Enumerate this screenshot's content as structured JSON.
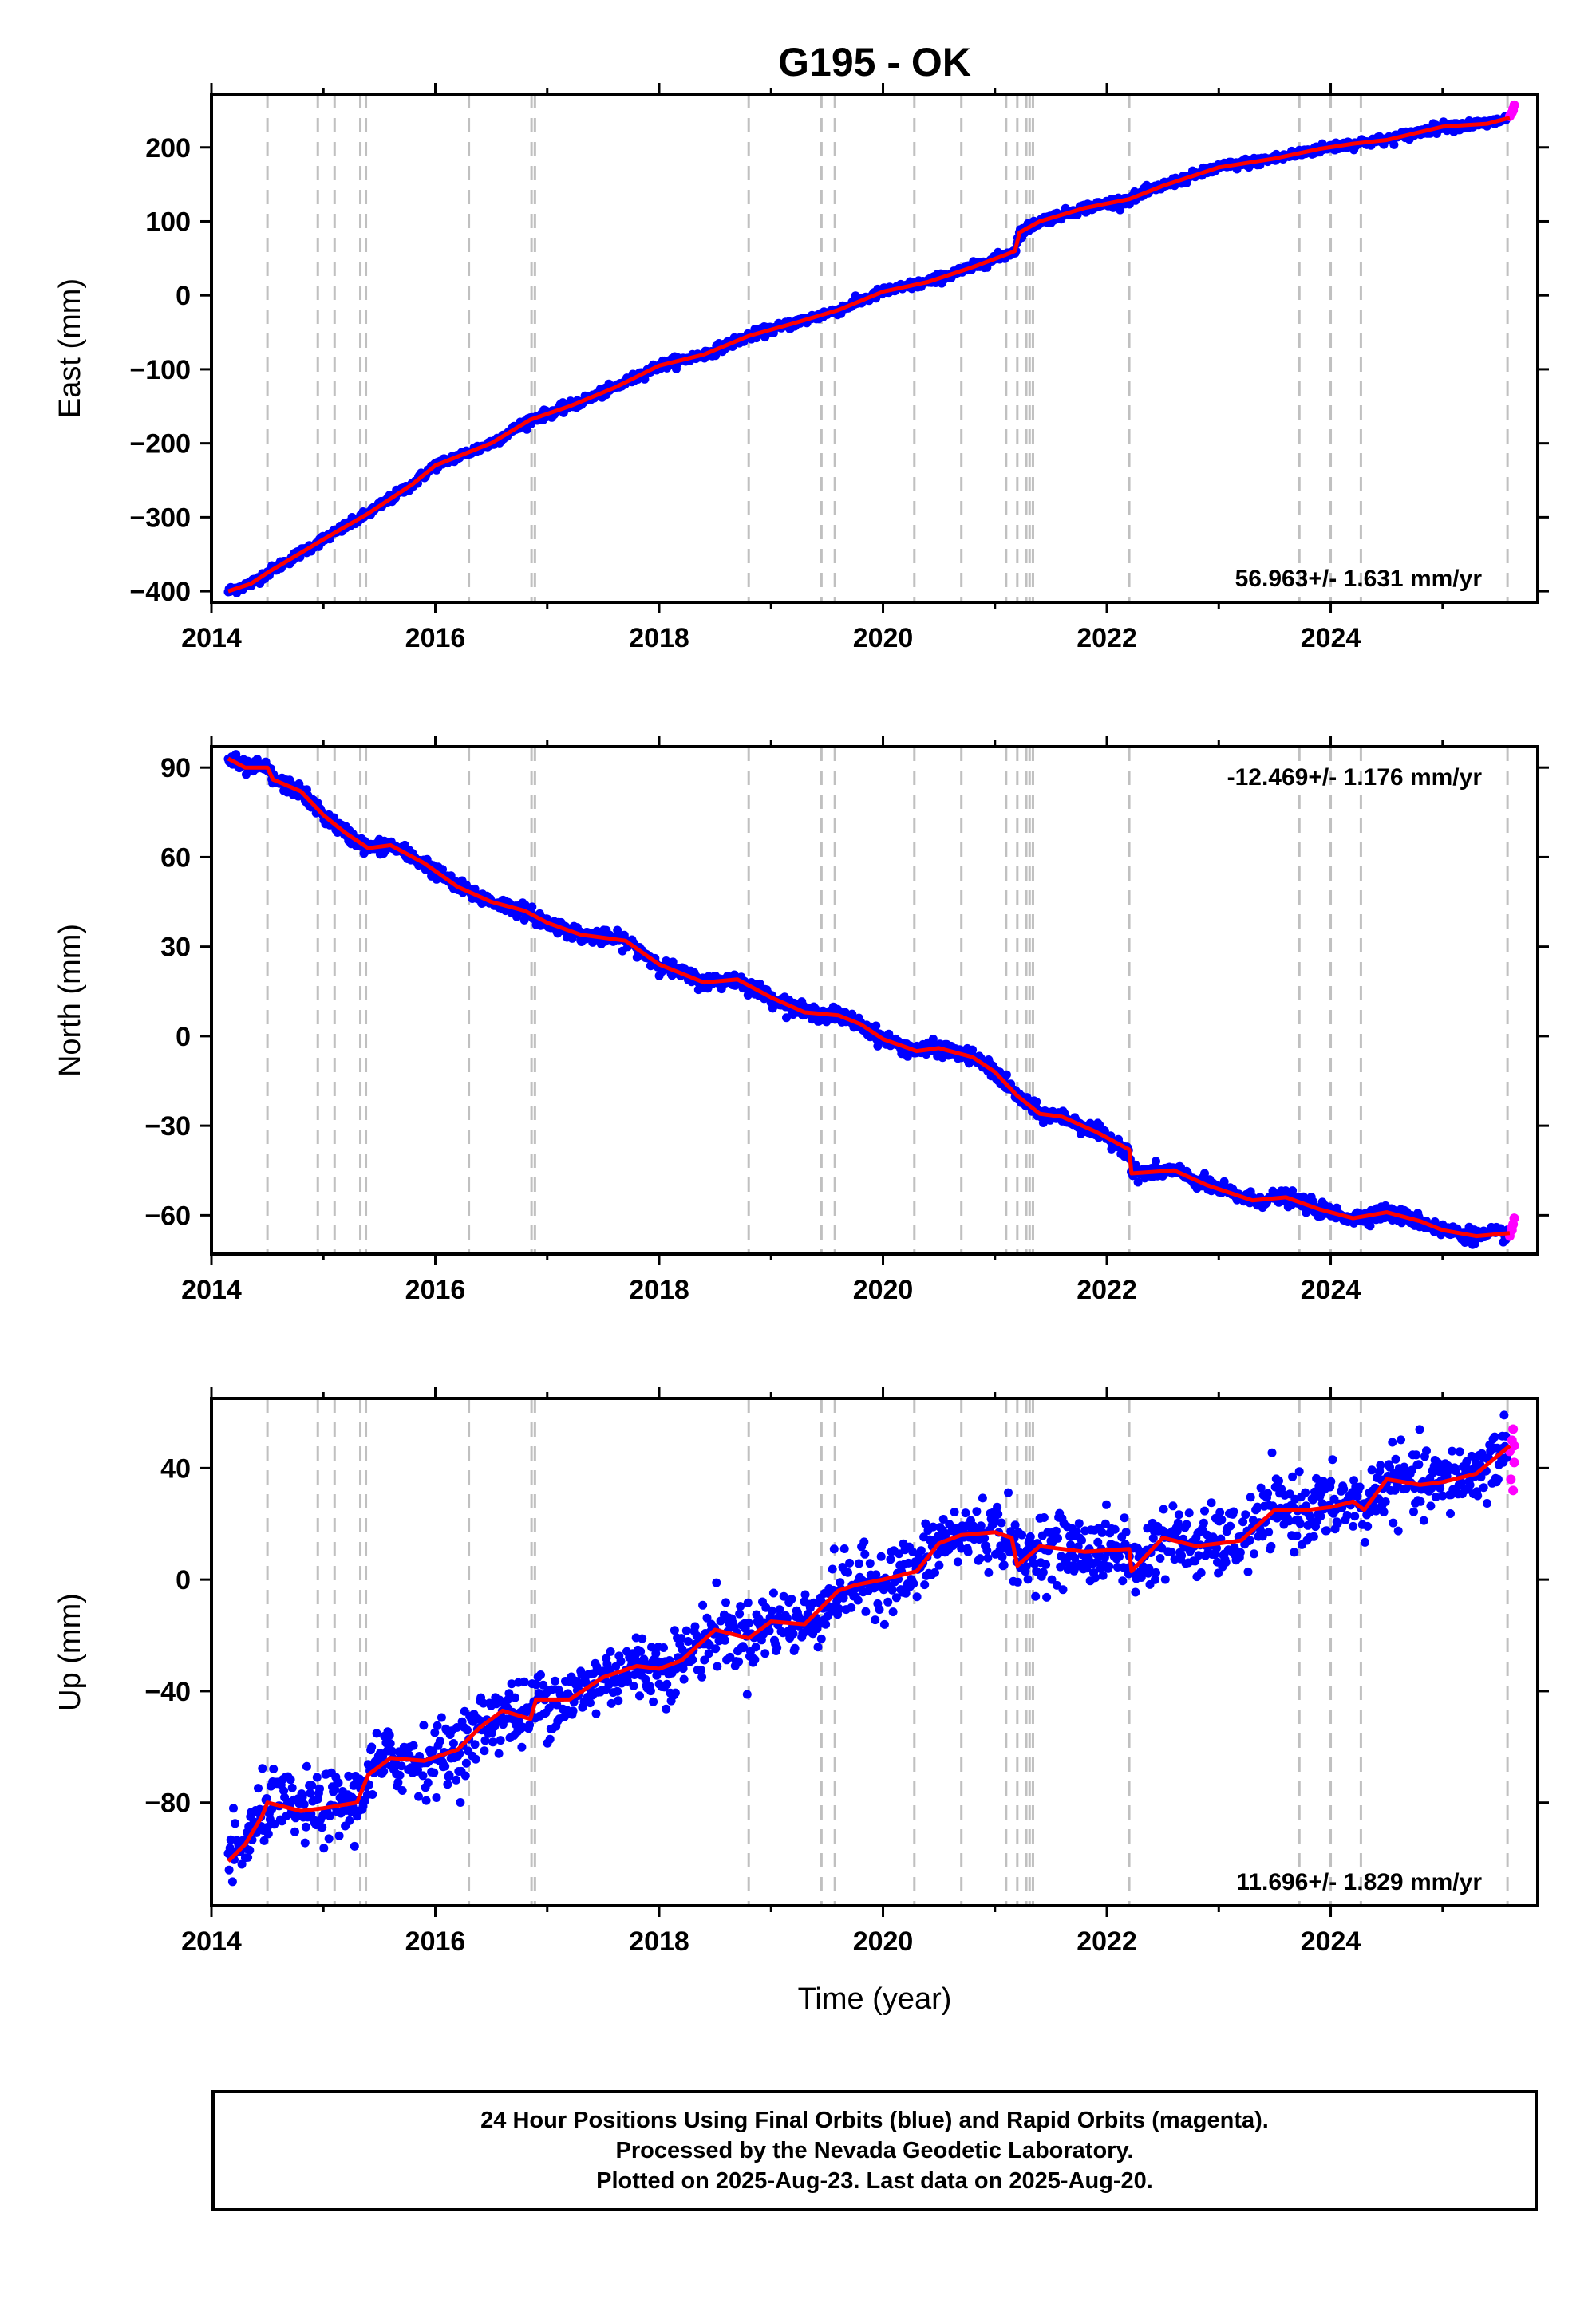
{
  "title": "G195 - OK",
  "xlabel": "Time (year)",
  "colors": {
    "final_orbits": "#0000ff",
    "rapid_orbits": "#ff00ff",
    "model": "#ff0000",
    "event_lines": "#c0c0c0",
    "frame": "#000000"
  },
  "footer": {
    "line1": "24 Hour Positions Using Final Orbits (blue) and Rapid Orbits (magenta).",
    "line2": "Processed by the Nevada Geodetic Laboratory.",
    "line3": "Plotted on 2025-Aug-23. Last data on 2025-Aug-20."
  },
  "chart_data": [
    {
      "type": "scatter",
      "component": "east",
      "ylabel": "East (mm)",
      "xlim": [
        2014.0,
        2025.85
      ],
      "ylim": [
        -415,
        272
      ],
      "xticks": [
        2014,
        2016,
        2018,
        2020,
        2022,
        2024
      ],
      "xtick_labels": [
        "2014",
        "2016",
        "2018",
        "2020",
        "2022",
        "2024"
      ],
      "yticks": [
        -400,
        -300,
        -200,
        -100,
        0,
        100,
        200
      ],
      "ytick_labels": [
        "−400",
        "−300",
        "−200",
        "−100",
        "0",
        "100",
        "200"
      ],
      "rate_label": "56.963+/- 1.631 mm/yr",
      "rate_position": "bottom-right",
      "noise_mm": 3,
      "model_points": [
        [
          2014.15,
          -400
        ],
        [
          2014.35,
          -390
        ],
        [
          2014.5,
          -375
        ],
        [
          2015.0,
          -330
        ],
        [
          2015.4,
          -295
        ],
        [
          2015.8,
          -255
        ],
        [
          2016.0,
          -230
        ],
        [
          2016.5,
          -200
        ],
        [
          2016.85,
          -168
        ],
        [
          2017.2,
          -150
        ],
        [
          2017.6,
          -125
        ],
        [
          2018.0,
          -95
        ],
        [
          2018.4,
          -80
        ],
        [
          2018.8,
          -55
        ],
        [
          2019.2,
          -38
        ],
        [
          2019.6,
          -20
        ],
        [
          2020.0,
          5
        ],
        [
          2020.4,
          18
        ],
        [
          2020.8,
          38
        ],
        [
          2021.1,
          55
        ],
        [
          2021.18,
          60
        ],
        [
          2021.22,
          85
        ],
        [
          2021.4,
          100
        ],
        [
          2021.8,
          118
        ],
        [
          2022.2,
          130
        ],
        [
          2022.5,
          148
        ],
        [
          2023.0,
          173
        ],
        [
          2023.5,
          185
        ],
        [
          2023.9,
          198
        ],
        [
          2024.2,
          205
        ],
        [
          2024.5,
          210
        ],
        [
          2025.0,
          228
        ],
        [
          2025.4,
          232
        ],
        [
          2025.6,
          240
        ]
      ],
      "rapid_points": [
        [
          2025.6,
          242
        ],
        [
          2025.62,
          247
        ],
        [
          2025.63,
          252
        ],
        [
          2025.64,
          257
        ],
        [
          2025.63,
          250
        ],
        [
          2025.61,
          245
        ]
      ],
      "data_start": 2014.15,
      "data_end": 2025.58
    },
    {
      "type": "scatter",
      "component": "north",
      "ylabel": "North (mm)",
      "xlim": [
        2014.0,
        2025.85
      ],
      "ylim": [
        -73,
        97
      ],
      "xticks": [
        2014,
        2016,
        2018,
        2020,
        2022,
        2024
      ],
      "xtick_labels": [
        "2014",
        "2016",
        "2018",
        "2020",
        "2022",
        "2024"
      ],
      "yticks": [
        -60,
        -30,
        0,
        30,
        60,
        90
      ],
      "ytick_labels": [
        "−60",
        "−30",
        "0",
        "30",
        "60",
        "90"
      ],
      "rate_label": "-12.469+/- 1.176 mm/yr",
      "rate_position": "top-right",
      "noise_mm": 1.2,
      "model_points": [
        [
          2014.15,
          93
        ],
        [
          2014.3,
          90
        ],
        [
          2014.5,
          90
        ],
        [
          2014.55,
          86
        ],
        [
          2014.8,
          82
        ],
        [
          2015.0,
          74
        ],
        [
          2015.2,
          68
        ],
        [
          2015.4,
          63
        ],
        [
          2015.6,
          64
        ],
        [
          2015.9,
          58
        ],
        [
          2016.2,
          50
        ],
        [
          2016.5,
          45
        ],
        [
          2016.8,
          42
        ],
        [
          2017.0,
          38
        ],
        [
          2017.3,
          34
        ],
        [
          2017.7,
          32
        ],
        [
          2018.0,
          24
        ],
        [
          2018.4,
          18
        ],
        [
          2018.7,
          19
        ],
        [
          2019.0,
          13
        ],
        [
          2019.3,
          8
        ],
        [
          2019.6,
          7
        ],
        [
          2019.8,
          4
        ],
        [
          2020.0,
          -1
        ],
        [
          2020.3,
          -5
        ],
        [
          2020.5,
          -4
        ],
        [
          2020.8,
          -7
        ],
        [
          2021.0,
          -12
        ],
        [
          2021.2,
          -20
        ],
        [
          2021.4,
          -26
        ],
        [
          2021.6,
          -27
        ],
        [
          2021.9,
          -32
        ],
        [
          2022.2,
          -38
        ],
        [
          2022.22,
          -46
        ],
        [
          2022.6,
          -45
        ],
        [
          2022.9,
          -50
        ],
        [
          2023.3,
          -55
        ],
        [
          2023.6,
          -54
        ],
        [
          2023.9,
          -58
        ],
        [
          2024.2,
          -61
        ],
        [
          2024.5,
          -59
        ],
        [
          2024.8,
          -62
        ],
        [
          2025.0,
          -65
        ],
        [
          2025.3,
          -67
        ],
        [
          2025.6,
          -66
        ]
      ],
      "rapid_points": [
        [
          2025.6,
          -67
        ],
        [
          2025.62,
          -65
        ],
        [
          2025.63,
          -63
        ],
        [
          2025.64,
          -61
        ],
        [
          2025.62,
          -64
        ]
      ],
      "data_start": 2014.15,
      "data_end": 2025.58
    },
    {
      "type": "scatter",
      "component": "up",
      "ylabel": "Up (mm)",
      "xlim": [
        2014.0,
        2025.85
      ],
      "ylim": [
        -117,
        65
      ],
      "xticks": [
        2014,
        2016,
        2018,
        2020,
        2022,
        2024
      ],
      "xtick_labels": [
        "2014",
        "2016",
        "2018",
        "2020",
        "2022",
        "2024"
      ],
      "yticks": [
        -80,
        -40,
        0,
        40
      ],
      "ytick_labels": [
        "−80",
        "−40",
        "0",
        "40"
      ],
      "rate_label": "11.696+/- 1.829 mm/yr",
      "rate_position": "bottom-right",
      "noise_mm": 6,
      "model_points": [
        [
          2014.15,
          -101
        ],
        [
          2014.3,
          -95
        ],
        [
          2014.45,
          -85
        ],
        [
          2014.5,
          -80
        ],
        [
          2014.8,
          -83
        ],
        [
          2015.0,
          -82
        ],
        [
          2015.3,
          -80
        ],
        [
          2015.4,
          -70
        ],
        [
          2015.6,
          -64
        ],
        [
          2015.9,
          -65
        ],
        [
          2016.2,
          -61
        ],
        [
          2016.4,
          -53
        ],
        [
          2016.6,
          -47
        ],
        [
          2016.85,
          -50
        ],
        [
          2016.9,
          -43
        ],
        [
          2017.2,
          -43
        ],
        [
          2017.5,
          -35
        ],
        [
          2017.8,
          -31
        ],
        [
          2018.0,
          -32
        ],
        [
          2018.2,
          -29
        ],
        [
          2018.5,
          -18
        ],
        [
          2018.8,
          -21
        ],
        [
          2019.0,
          -15
        ],
        [
          2019.3,
          -16
        ],
        [
          2019.6,
          -4
        ],
        [
          2019.75,
          -2
        ],
        [
          2020.0,
          0
        ],
        [
          2020.3,
          3
        ],
        [
          2020.5,
          13
        ],
        [
          2020.7,
          16
        ],
        [
          2021.0,
          17
        ],
        [
          2021.15,
          15
        ],
        [
          2021.2,
          5
        ],
        [
          2021.4,
          12
        ],
        [
          2021.8,
          10
        ],
        [
          2022.2,
          11
        ],
        [
          2022.22,
          3
        ],
        [
          2022.5,
          15
        ],
        [
          2022.8,
          12
        ],
        [
          2023.2,
          14
        ],
        [
          2023.5,
          25
        ],
        [
          2023.8,
          25
        ],
        [
          2024.0,
          26
        ],
        [
          2024.2,
          28
        ],
        [
          2024.3,
          25
        ],
        [
          2024.5,
          36
        ],
        [
          2024.8,
          34
        ],
        [
          2025.0,
          35
        ],
        [
          2025.3,
          38
        ],
        [
          2025.6,
          48
        ]
      ],
      "rapid_points": [
        [
          2025.6,
          46
        ],
        [
          2025.62,
          50
        ],
        [
          2025.63,
          54
        ],
        [
          2025.64,
          42
        ],
        [
          2025.61,
          36
        ],
        [
          2025.63,
          32
        ],
        [
          2025.64,
          48
        ]
      ],
      "data_start": 2014.15,
      "data_end": 2025.58
    }
  ],
  "event_lines": [
    2014.5,
    2014.95,
    2015.1,
    2015.33,
    2015.38,
    2016.3,
    2016.86,
    2016.89,
    2018.8,
    2019.45,
    2019.57,
    2020.28,
    2020.7,
    2021.1,
    2021.2,
    2021.28,
    2021.31,
    2021.34,
    2022.2,
    2023.72,
    2024.0,
    2024.27,
    2025.58
  ]
}
